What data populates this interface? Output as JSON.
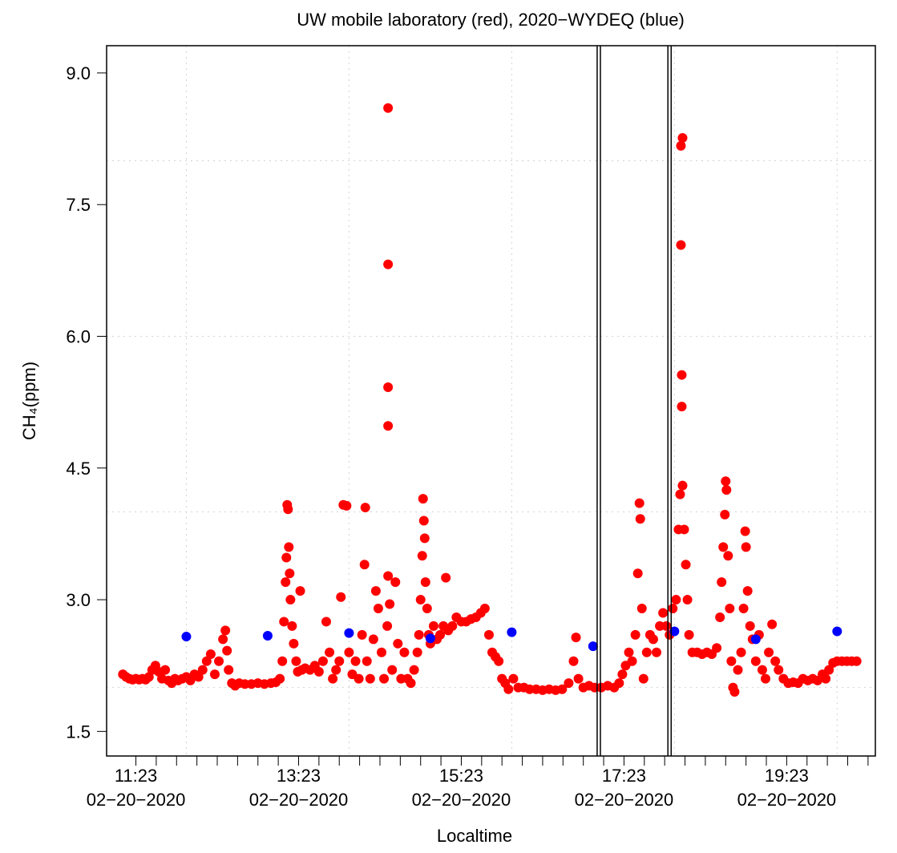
{
  "chart_data": {
    "type": "scatter",
    "title": "UW mobile laboratory (red), 2020−WYDEQ (blue)",
    "x_label": "Localtime",
    "y_label": "CH₄(ppm)",
    "xlim": [
      11.02,
      20.47
    ],
    "ylim": [
      1.22,
      9.31
    ],
    "xticks": [
      {
        "value": 11.38,
        "label": "11:23 02−20−2020"
      },
      {
        "value": 13.38,
        "label": "13:23 02−20−2020"
      },
      {
        "value": 15.38,
        "label": "15:23 02−20−2020"
      },
      {
        "value": 17.38,
        "label": "17:23 02−20−2020"
      },
      {
        "value": 19.38,
        "label": "19:23 02−20−2020"
      }
    ],
    "xminorticks": [
      11.63,
      11.88,
      12.13,
      12.38,
      12.63,
      12.88,
      13.13,
      13.63,
      13.88,
      14.13,
      14.38,
      14.63,
      14.88,
      15.13,
      15.63,
      15.88,
      16.13,
      16.38,
      16.63,
      16.88,
      17.13,
      17.63,
      17.88,
      18.13,
      18.38,
      18.63,
      18.88,
      19.13,
      19.63,
      19.88,
      20.13,
      20.38
    ],
    "yticks": [
      1.5,
      {
        "value": 3,
        "label": "3.0"
      },
      4.5,
      {
        "value": 6,
        "label": "6.0"
      },
      7.5,
      {
        "value": 9,
        "label": "9.0"
      }
    ],
    "grid_x": [
      12,
      14,
      16,
      18,
      20
    ],
    "grid_y": [
      2,
      4,
      6,
      8
    ],
    "reference_lines": [
      17.05,
      17.09,
      17.92,
      17.96
    ],
    "series": [
      {
        "name": "UW mobile laboratory",
        "color": "#ff0000",
        "x": [
          11.22,
          11.26,
          11.3,
          11.34,
          11.38,
          11.42,
          11.46,
          11.5,
          11.54,
          11.58,
          11.62,
          11.66,
          11.7,
          11.74,
          11.78,
          11.82,
          11.86,
          11.9,
          11.95,
          12.0,
          12.05,
          12.1,
          12.15,
          12.2,
          12.25,
          12.3,
          12.35,
          12.4,
          12.45,
          12.48,
          12.5,
          12.52,
          12.56,
          12.6,
          12.65,
          12.72,
          12.8,
          12.88,
          12.96,
          13.04,
          13.1,
          13.15,
          13.18,
          13.2,
          13.22,
          13.23,
          13.24,
          13.25,
          13.26,
          13.27,
          13.28,
          13.3,
          13.32,
          13.35,
          13.37,
          13.4,
          13.42,
          13.46,
          13.52,
          13.58,
          13.63,
          13.68,
          13.72,
          13.76,
          13.8,
          13.84,
          13.88,
          13.9,
          13.93,
          13.97,
          14.0,
          14.04,
          14.08,
          14.12,
          14.16,
          14.19,
          14.2,
          14.22,
          14.26,
          14.3,
          14.33,
          14.36,
          14.4,
          14.43,
          14.47,
          14.48,
          14.48,
          14.48,
          14.48,
          14.48,
          14.5,
          14.53,
          14.57,
          14.6,
          14.64,
          14.68,
          14.72,
          14.76,
          14.8,
          14.84,
          14.86,
          14.88,
          14.9,
          14.91,
          14.92,
          14.93,
          14.94,
          14.96,
          14.98,
          15.0,
          15.04,
          15.08,
          15.12,
          15.16,
          15.19,
          15.22,
          15.27,
          15.32,
          15.38,
          15.44,
          15.5,
          15.56,
          15.62,
          15.67,
          15.72,
          15.76,
          15.8,
          15.84,
          15.88,
          15.92,
          15.96,
          16.02,
          16.08,
          16.15,
          16.22,
          16.3,
          16.38,
          16.46,
          16.54,
          16.62,
          16.7,
          16.76,
          16.79,
          16.82,
          16.88,
          16.95,
          17.02,
          17.1,
          17.18,
          17.26,
          17.32,
          17.36,
          17.4,
          17.44,
          17.48,
          17.52,
          17.55,
          17.57,
          17.58,
          17.6,
          17.62,
          17.66,
          17.7,
          17.74,
          17.78,
          17.82,
          17.86,
          17.9,
          17.94,
          17.98,
          18.02,
          18.05,
          18.07,
          18.09,
          18.09,
          18.08,
          18.08,
          18.1,
          18.1,
          18.12,
          18.14,
          18.16,
          18.18,
          18.22,
          18.28,
          18.34,
          18.4,
          18.46,
          18.52,
          18.56,
          18.58,
          18.6,
          18.62,
          18.63,
          18.64,
          18.66,
          18.68,
          18.7,
          18.72,
          18.74,
          18.78,
          18.82,
          18.85,
          18.87,
          18.88,
          18.9,
          18.93,
          18.96,
          19.0,
          19.04,
          19.08,
          19.12,
          19.16,
          19.2,
          19.24,
          19.28,
          19.34,
          19.4,
          19.46,
          19.52,
          19.58,
          19.64,
          19.7,
          19.76,
          19.82,
          19.86,
          19.9,
          19.95,
          20.0,
          20.06,
          20.12,
          20.18,
          20.24
        ],
        "values": [
          2.15,
          2.12,
          2.1,
          2.09,
          2.1,
          2.09,
          2.1,
          2.09,
          2.12,
          2.2,
          2.25,
          2.18,
          2.1,
          2.2,
          2.08,
          2.05,
          2.1,
          2.08,
          2.1,
          2.12,
          2.08,
          2.15,
          2.12,
          2.2,
          2.3,
          2.38,
          2.15,
          2.3,
          2.55,
          2.65,
          2.42,
          2.2,
          2.05,
          2.02,
          2.05,
          2.04,
          2.04,
          2.05,
          2.04,
          2.05,
          2.06,
          2.1,
          2.3,
          2.75,
          3.2,
          3.48,
          4.08,
          4.03,
          3.6,
          3.3,
          3.0,
          2.7,
          2.5,
          2.3,
          2.18,
          3.1,
          2.2,
          2.22,
          2.2,
          2.25,
          2.18,
          2.3,
          2.75,
          2.4,
          2.1,
          2.2,
          2.3,
          3.03,
          4.08,
          4.07,
          2.4,
          2.15,
          2.3,
          2.1,
          2.6,
          3.4,
          4.05,
          2.3,
          2.1,
          2.55,
          3.1,
          2.9,
          2.4,
          2.1,
          2.7,
          3.27,
          4.98,
          5.42,
          6.82,
          8.6,
          2.95,
          2.2,
          3.2,
          2.5,
          2.1,
          2.4,
          2.1,
          2.05,
          2.2,
          2.4,
          2.6,
          3.0,
          3.5,
          4.15,
          3.9,
          3.7,
          3.2,
          2.9,
          2.6,
          2.5,
          2.7,
          2.55,
          2.6,
          2.7,
          3.25,
          2.65,
          2.7,
          2.8,
          2.75,
          2.75,
          2.78,
          2.8,
          2.85,
          2.9,
          2.6,
          2.4,
          2.35,
          2.3,
          2.1,
          2.05,
          1.98,
          2.1,
          2.0,
          2.0,
          1.98,
          1.98,
          1.97,
          1.98,
          1.97,
          1.98,
          2.05,
          2.3,
          2.57,
          2.1,
          2.0,
          2.02,
          2.0,
          2.0,
          2.02,
          2.0,
          2.05,
          2.15,
          2.25,
          2.4,
          2.3,
          2.6,
          3.3,
          4.1,
          3.92,
          2.9,
          2.1,
          2.4,
          2.6,
          2.55,
          2.4,
          2.7,
          2.85,
          2.7,
          2.6,
          2.9,
          3.0,
          3.8,
          4.2,
          5.2,
          5.56,
          7.04,
          8.17,
          8.26,
          4.3,
          3.8,
          3.4,
          3.0,
          2.6,
          2.4,
          2.4,
          2.38,
          2.4,
          2.38,
          2.45,
          2.8,
          3.2,
          3.6,
          3.97,
          4.35,
          4.25,
          3.5,
          2.9,
          2.3,
          2.0,
          1.95,
          2.2,
          2.4,
          2.9,
          3.78,
          3.6,
          3.1,
          2.7,
          2.55,
          2.3,
          2.6,
          2.2,
          2.1,
          2.4,
          2.72,
          2.3,
          2.2,
          2.1,
          2.05,
          2.06,
          2.05,
          2.1,
          2.08,
          2.1,
          2.08,
          2.15,
          2.1,
          2.2,
          2.28,
          2.3,
          2.3,
          2.3,
          2.3,
          2.3
        ]
      },
      {
        "name": "2020−WYDEQ",
        "color": "#0000ff",
        "x": [
          12,
          13,
          14,
          15,
          16,
          17,
          18,
          19,
          20
        ],
        "values": [
          2.58,
          2.59,
          2.62,
          2.56,
          2.63,
          2.47,
          2.64,
          2.55,
          2.64
        ]
      }
    ]
  }
}
